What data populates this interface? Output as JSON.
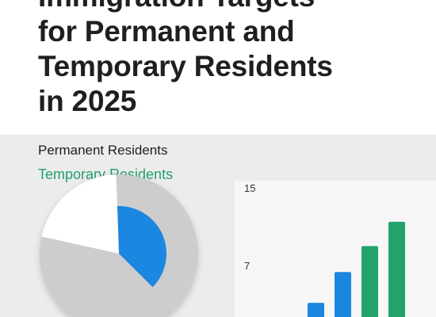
{
  "title_lines": [
    "Immigration Targets",
    "for Permanent and",
    "Temporary Residents",
    "in 2025"
  ],
  "legend": {
    "permanent": "Permanent Residents",
    "temporary": "Temporary Residents"
  },
  "colors": {
    "permanent": "#1a87e0",
    "temporary": "#22a36b",
    "pie_gray": "#cdcdcd",
    "pie_white": "#ffffff"
  },
  "chart_data": [
    {
      "type": "pie",
      "slices": [
        {
          "label": "Permanent Residents",
          "value": 38
        },
        {
          "label": "Temporary Residents",
          "value": 41
        },
        {
          "label": "",
          "value": 21
        }
      ]
    },
    {
      "type": "bar",
      "ticks": [
        "15",
        "7"
      ],
      "series": [
        {
          "name": "Permanent Residents",
          "values": [
            3.5,
            7.3
          ]
        },
        {
          "name": "Temporary Residents",
          "values": [
            10.5,
            13.5
          ]
        }
      ],
      "ylim": [
        0,
        17
      ]
    }
  ]
}
